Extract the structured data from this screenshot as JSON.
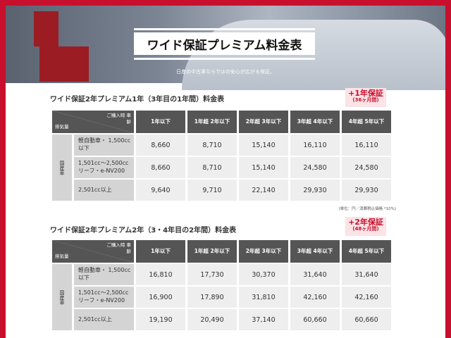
{
  "banner": {
    "title": "ワイド保証プレミアム料金表",
    "subtitle": "日産の中古車ならではの安心が広がる保証。"
  },
  "tables": [
    {
      "title": "ワイド保証2年プレミアム1年（3年目の1年間）料金表",
      "badge_main": "+1年保証",
      "badge_sub": "(36ヶ月間)",
      "corner_top": "ご購入時 車齢",
      "corner_bottom": "排気量",
      "group": "国産車",
      "columns": [
        "1年以下",
        "1年超 2年以下",
        "2年超 3年以下",
        "3年超 4年以下",
        "4年超 5年以下"
      ],
      "rows": [
        {
          "category": "軽自動車・ 1,500cc以下",
          "values": [
            "8,660",
            "8,710",
            "15,140",
            "16,110",
            "16,110"
          ]
        },
        {
          "category": "1,501cc〜2,500cc リーフ・e-NV200",
          "values": [
            "8,660",
            "8,710",
            "15,140",
            "24,580",
            "24,580"
          ]
        },
        {
          "category": "2,501cc以上",
          "values": [
            "9,640",
            "9,710",
            "22,140",
            "29,930",
            "29,930"
          ]
        }
      ]
    },
    {
      "title": "ワイド保証2年プレミアム2年（3・4年目の2年間）料金表",
      "badge_main": "+2年保証",
      "badge_sub": "(48ヶ月間)",
      "corner_top": "ご購入時 車齢",
      "corner_bottom": "排気量",
      "group": "国産車",
      "columns": [
        "1年以下",
        "1年超 2年以下",
        "2年超 3年以下",
        "3年超 4年以下",
        "4年超 5年以下"
      ],
      "rows": [
        {
          "category": "軽自動車・ 1,500cc以下",
          "values": [
            "16,810",
            "17,730",
            "30,370",
            "31,640",
            "31,640"
          ]
        },
        {
          "category": "1,501cc〜2,500cc リーフ・e-NV200",
          "values": [
            "16,900",
            "17,890",
            "31,810",
            "42,160",
            "42,160"
          ]
        },
        {
          "category": "2,501cc以上",
          "values": [
            "19,190",
            "20,490",
            "37,140",
            "60,660",
            "60,660"
          ]
        }
      ]
    }
  ],
  "note": "(単位：円／消費税込価格 *10%)",
  "colors": {
    "border": "#c8102e",
    "header": "#555555",
    "badge_bg": "#fbe3e6"
  }
}
